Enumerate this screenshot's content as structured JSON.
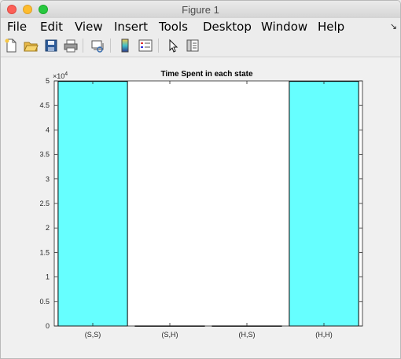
{
  "window": {
    "title": "Figure 1"
  },
  "menu": {
    "items": [
      "File",
      "Edit",
      "View",
      "Insert",
      "Tools",
      "Desktop",
      "Window",
      "Help"
    ],
    "arrow_glyph": "↘"
  },
  "toolbar": {
    "icons": [
      "new-figure-icon",
      "open-file-icon",
      "save-icon",
      "print-icon",
      "link-plot-icon",
      "insert-colorbar-icon",
      "insert-legend-icon",
      "pointer-icon",
      "property-inspector-icon"
    ]
  },
  "chart_data": {
    "type": "bar",
    "title": "Time Spent in each state",
    "categories": [
      "(S,S)",
      "(S,H)",
      "(H,S)",
      "(H,H)"
    ],
    "values": [
      49900,
      20,
      20,
      49900
    ],
    "ylim": [
      0,
      50000
    ],
    "yticks": [
      0,
      0.5,
      1,
      1.5,
      2,
      2.5,
      3,
      3.5,
      4,
      4.5,
      5
    ],
    "ytick_labels": [
      "0",
      "0.5",
      "1",
      "1.5",
      "2",
      "2.5",
      "3",
      "3.5",
      "4",
      "4.5",
      "5"
    ],
    "y_exponent_base": "×10",
    "y_exponent_power": "4",
    "bar_color": "#66ffff",
    "bar_edge_color": "#000000",
    "grid": false
  }
}
